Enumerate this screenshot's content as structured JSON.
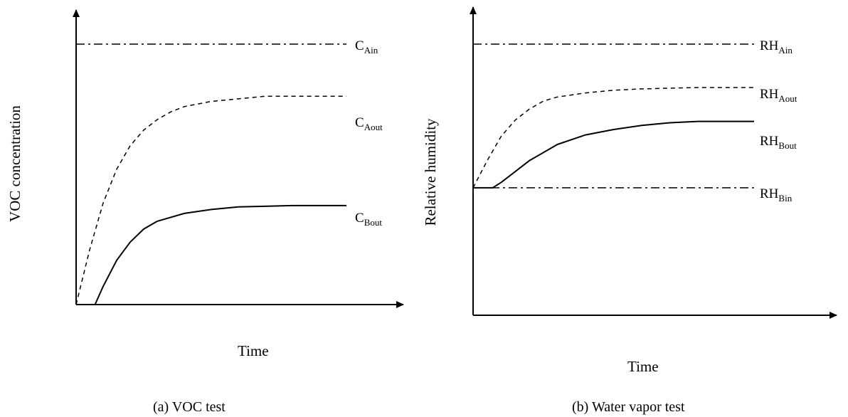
{
  "chart_data": [
    {
      "type": "line",
      "caption": "(a)  VOC test",
      "xlabel": "Time",
      "ylabel": "VOC concentration",
      "series": [
        {
          "name": "C",
          "sub": "Ain",
          "style": "dashdot",
          "x": [
            0,
            10
          ],
          "y": [
            100,
            100
          ]
        },
        {
          "name": "C",
          "sub": "Aout",
          "style": "dashed",
          "x": [
            0,
            0.5,
            1,
            1.5,
            2,
            2.5,
            3,
            3.5,
            4,
            5,
            6,
            7,
            8,
            9,
            10
          ],
          "y": [
            0,
            21,
            39,
            52,
            61,
            67,
            71,
            74,
            76,
            78,
            79,
            80,
            80,
            80,
            80
          ]
        },
        {
          "name": "C",
          "sub": "Bout",
          "style": "solid",
          "x": [
            0.7,
            1,
            1.5,
            2,
            2.5,
            3,
            4,
            5,
            6,
            8,
            10
          ],
          "y": [
            0,
            7,
            17,
            24,
            29,
            32,
            35,
            36.5,
            37.5,
            38,
            38
          ]
        }
      ]
    },
    {
      "type": "line",
      "caption": "(b) Water vapor test",
      "xlabel": "Time",
      "ylabel": "Relative humidity",
      "series": [
        {
          "name": "RH",
          "sub": "Ain",
          "style": "dashdot",
          "x": [
            0,
            10
          ],
          "y": [
            100,
            100
          ]
        },
        {
          "name": "RH",
          "sub": "Aout",
          "style": "dashed",
          "x": [
            0,
            0.5,
            1,
            1.5,
            2,
            2.5,
            3,
            4,
            5,
            6,
            8,
            10
          ],
          "y": [
            47,
            57,
            66,
            72,
            76,
            79,
            80.5,
            82,
            83,
            83.5,
            84,
            84
          ]
        },
        {
          "name": "RH",
          "sub": "Bout",
          "style": "solid",
          "x": [
            0,
            0.7,
            1,
            1.5,
            2,
            2.5,
            3,
            4,
            5,
            6,
            7,
            8,
            9,
            10
          ],
          "y": [
            47,
            47,
            49,
            53,
            57,
            60,
            63,
            66.5,
            68.5,
            70,
            71,
            71.5,
            71.5,
            71.5
          ]
        },
        {
          "name": "RH",
          "sub": "Bin",
          "style": "dashdot",
          "x": [
            0,
            10
          ],
          "y": [
            47,
            47
          ]
        }
      ]
    }
  ]
}
